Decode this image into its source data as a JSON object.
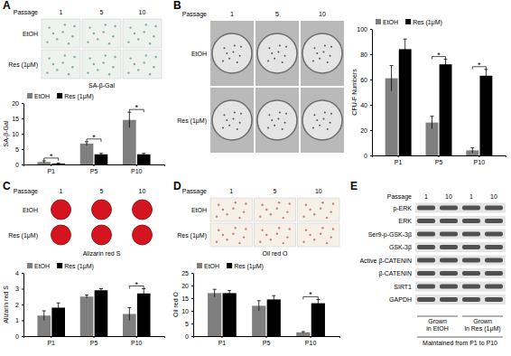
{
  "chart_data": [
    {
      "type": "bar",
      "ylabel": "SA-β-Gal",
      "categories": [
        "P1",
        "P5",
        "P10"
      ],
      "series": [
        {
          "name": "EtOH",
          "color": "#7f7f7f",
          "values": [
            0.8,
            6.8,
            14.5
          ],
          "errors": [
            0.4,
            0.6,
            2.5
          ]
        },
        {
          "name": "Res (1μM)",
          "color": "#000000",
          "values": [
            0.3,
            3.3,
            3.3
          ],
          "errors": [
            0.2,
            0.3,
            0.3
          ]
        }
      ],
      "ylim": [
        0,
        20
      ],
      "yticks": [
        0,
        5,
        10,
        15,
        20
      ],
      "legend": "upper left",
      "annotations": [
        {
          "text": "*",
          "x": "P1"
        },
        {
          "text": "*",
          "x": "P5"
        },
        {
          "text": "*",
          "x": "P10"
        }
      ]
    },
    {
      "type": "bar",
      "ylabel": "CFU-F Numbers",
      "categories": [
        "P1",
        "P5",
        "P10"
      ],
      "series": [
        {
          "name": "EtOH",
          "color": "#7f7f7f",
          "values": [
            61,
            26,
            4
          ],
          "errors": [
            10,
            5,
            2
          ]
        },
        {
          "name": "Res (1μM)",
          "color": "#000000",
          "values": [
            84,
            72,
            63
          ],
          "errors": [
            8,
            4,
            5
          ]
        }
      ],
      "ylim": [
        0,
        100
      ],
      "yticks": [
        0,
        20,
        40,
        60,
        80,
        100
      ],
      "legend": "upper left",
      "annotations": [
        {
          "text": "*",
          "x": "P5"
        },
        {
          "text": "*",
          "x": "P10"
        }
      ]
    },
    {
      "type": "bar",
      "ylabel": "Alizarin red S",
      "categories": [
        "P1",
        "P5",
        "P10"
      ],
      "series": [
        {
          "name": "EtOH",
          "color": "#7f7f7f",
          "values": [
            1.3,
            2.5,
            1.4
          ],
          "errors": [
            0.3,
            0.1,
            0.4
          ]
        },
        {
          "name": "Res (1μM)",
          "color": "#000000",
          "values": [
            1.8,
            2.9,
            2.7
          ],
          "errors": [
            0.3,
            0.1,
            0.3
          ]
        }
      ],
      "ylim": [
        0,
        4
      ],
      "yticks": [
        0,
        1,
        2,
        3,
        4
      ],
      "legend": "upper left",
      "annotations": [
        {
          "text": "*",
          "x": "P10"
        }
      ]
    },
    {
      "type": "bar",
      "ylabel": "Oil red O",
      "categories": [
        "P1",
        "P5",
        "P10"
      ],
      "series": [
        {
          "name": "EtOH",
          "color": "#7f7f7f",
          "values": [
            17,
            12,
            1.5
          ],
          "errors": [
            1.5,
            2,
            0.3
          ]
        },
        {
          "name": "Res (1μM)",
          "color": "#000000",
          "values": [
            17,
            14.5,
            13
          ],
          "errors": [
            1,
            1.5,
            1.5
          ]
        }
      ],
      "ylim": [
        0,
        25
      ],
      "yticks": [
        0,
        5,
        10,
        15,
        20,
        25
      ],
      "legend": "upper left",
      "annotations": [
        {
          "text": "*",
          "x": "P10"
        }
      ]
    }
  ],
  "figure": {
    "panels": [
      {
        "label": "A",
        "passage_label": "Passage",
        "passages": [
          "1",
          "5",
          "10"
        ],
        "rows": [
          "EtOH",
          "Res (1μM)"
        ],
        "caption": "SA-β-Gal"
      },
      {
        "label": "B",
        "passage_label": "Passage",
        "passages": [
          "1",
          "5",
          "10"
        ],
        "rows": [
          "EtOH",
          "Res (1μM)"
        ]
      },
      {
        "label": "C",
        "passage_label": "Passage",
        "passages": [
          "1",
          "5",
          "10"
        ],
        "rows": [
          "EtOH",
          "Res (1μM)"
        ],
        "caption": "Alizarin red S"
      },
      {
        "label": "D",
        "passage_label": "Passage",
        "passages": [
          "1",
          "5",
          "10"
        ],
        "rows": [
          "EtOH",
          "Res (1μM)"
        ],
        "caption": "Oil red O"
      }
    ],
    "blot": {
      "label": "E",
      "passage_label": "Passage",
      "passages": [
        "1",
        "10",
        "1",
        "10"
      ],
      "rows": [
        "p-ERK",
        "ERK",
        "Ser9-p-GSK-3β",
        "GSK-3β",
        "Active β-CATENIN",
        "β-CATENIN",
        "SIRT1",
        "GAPDH"
      ],
      "groups": [
        {
          "lines": [
            "Grown",
            "in EtOH"
          ]
        },
        {
          "lines": [
            "Grown",
            "in Res (1μM)"
          ]
        }
      ],
      "footer": "Maintained from P1 to P10"
    }
  }
}
